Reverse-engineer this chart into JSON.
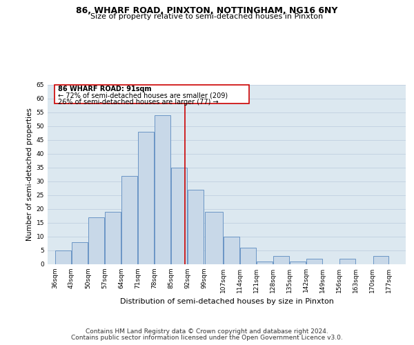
{
  "title1": "86, WHARF ROAD, PINXTON, NOTTINGHAM, NG16 6NY",
  "title2": "Size of property relative to semi-detached houses in Pinxton",
  "xlabel": "Distribution of semi-detached houses by size in Pinxton",
  "ylabel": "Number of semi-detached properties",
  "footnote1": "Contains HM Land Registry data © Crown copyright and database right 2024.",
  "footnote2": "Contains public sector information licensed under the Open Government Licence v3.0.",
  "annotation_line1": "86 WHARF ROAD: 91sqm",
  "annotation_line2": "← 72% of semi-detached houses are smaller (209)",
  "annotation_line3": "26% of semi-detached houses are larger (77) →",
  "bar_left_edges": [
    36,
    43,
    50,
    57,
    64,
    71,
    78,
    85,
    92,
    99,
    107,
    114,
    121,
    128,
    135,
    142,
    149,
    156,
    163,
    170
  ],
  "bar_widths": [
    7,
    7,
    7,
    7,
    7,
    7,
    7,
    7,
    7,
    8,
    7,
    7,
    7,
    7,
    7,
    7,
    7,
    7,
    7,
    7
  ],
  "bar_heights": [
    5,
    8,
    17,
    19,
    32,
    48,
    54,
    35,
    27,
    19,
    10,
    6,
    1,
    3,
    1,
    2,
    0,
    2,
    0,
    3
  ],
  "tick_labels": [
    "36sqm",
    "43sqm",
    "50sqm",
    "57sqm",
    "64sqm",
    "71sqm",
    "78sqm",
    "85sqm",
    "92sqm",
    "99sqm",
    "107sqm",
    "114sqm",
    "121sqm",
    "128sqm",
    "135sqm",
    "142sqm",
    "149sqm",
    "156sqm",
    "163sqm",
    "170sqm",
    "177sqm"
  ],
  "tick_positions": [
    36,
    43,
    50,
    57,
    64,
    71,
    78,
    85,
    92,
    99,
    107,
    114,
    121,
    128,
    135,
    142,
    149,
    156,
    163,
    170,
    177
  ],
  "bar_color": "#c8d8e8",
  "bar_edge_color": "#5a8abf",
  "vline_x": 91,
  "vline_color": "#cc0000",
  "annotation_box_color": "#cc0000",
  "ylim": [
    0,
    65
  ],
  "yticks": [
    0,
    5,
    10,
    15,
    20,
    25,
    30,
    35,
    40,
    45,
    50,
    55,
    60,
    65
  ],
  "grid_color": "#c0cfe0",
  "background_color": "#dce8f0",
  "figure_bg": "#ffffff",
  "title1_fontsize": 9,
  "title2_fontsize": 8,
  "annotation_fontsize": 7,
  "xlabel_fontsize": 8,
  "ylabel_fontsize": 7.5,
  "tick_fontsize": 6.5,
  "footnote_fontsize": 6.5
}
